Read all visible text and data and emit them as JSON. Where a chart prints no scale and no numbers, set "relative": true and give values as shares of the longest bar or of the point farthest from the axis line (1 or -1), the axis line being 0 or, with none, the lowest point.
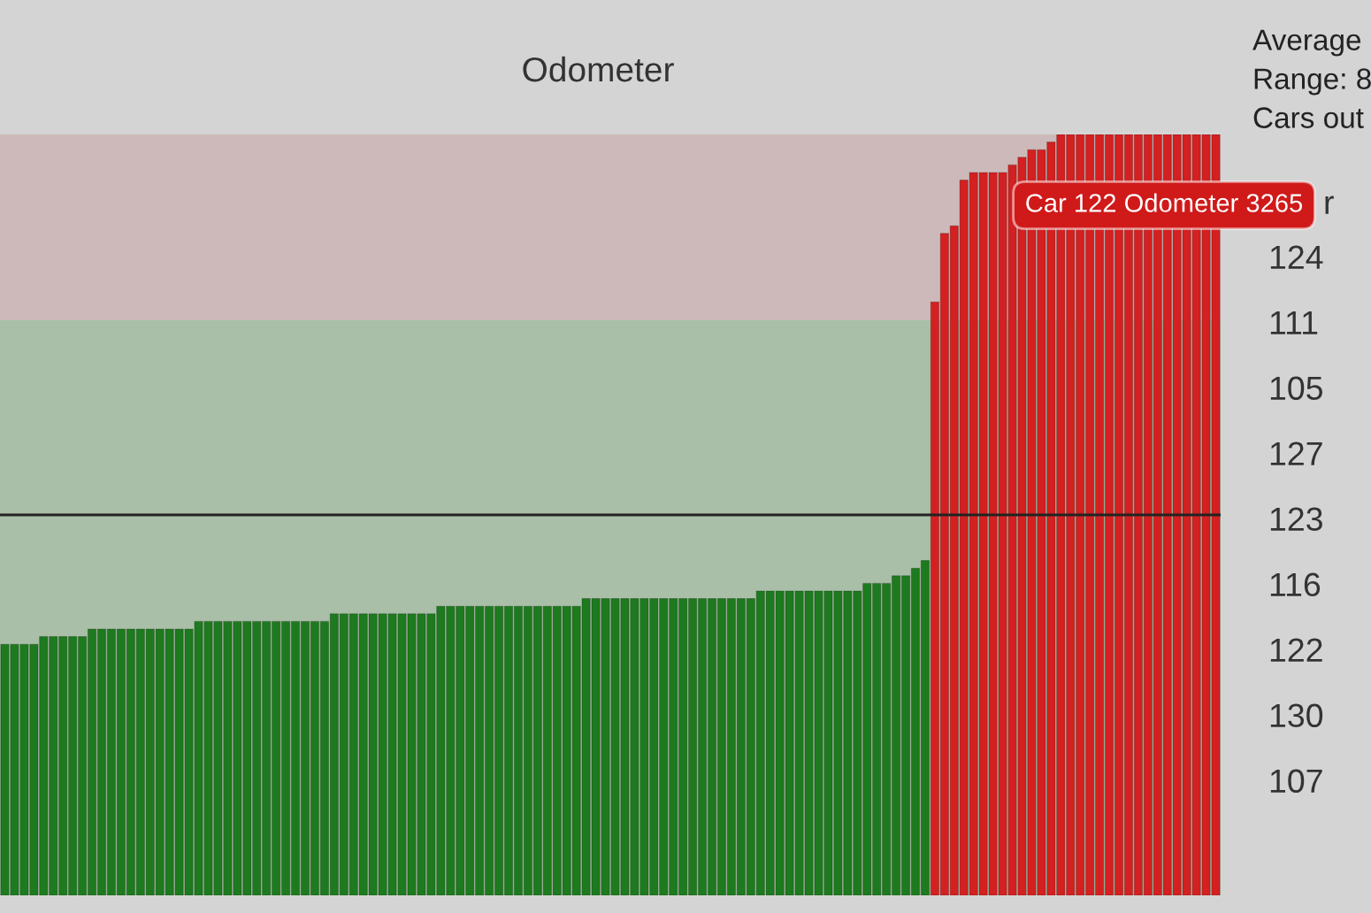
{
  "chart_data": [
    {
      "type": "bar",
      "title": "Odometer",
      "relative": true,
      "categories": [
        null,
        null,
        null,
        null,
        null,
        null,
        null,
        null,
        null,
        null,
        null,
        null,
        null,
        null,
        null,
        null,
        null,
        null,
        null,
        null,
        null,
        null,
        null,
        null,
        null,
        null,
        null,
        null,
        null,
        null,
        null,
        null,
        null,
        null,
        null,
        null,
        null,
        null,
        null,
        null,
        null,
        null,
        null,
        null,
        null,
        null,
        null,
        null,
        null,
        null,
        null,
        null,
        null,
        null,
        null,
        null,
        null,
        null,
        null,
        null,
        null,
        null,
        null,
        null,
        null,
        null,
        null,
        null,
        null,
        null,
        null,
        null,
        null,
        null,
        null,
        null,
        null,
        null,
        null,
        null,
        null,
        null,
        null,
        null,
        null,
        null,
        null,
        null,
        null,
        null,
        null,
        null,
        null,
        null,
        null,
        null,
        null,
        null,
        null,
        null,
        null,
        null,
        null,
        null,
        null,
        null,
        null,
        null,
        null,
        null,
        null,
        null,
        null,
        null,
        null,
        null,
        null,
        null,
        null,
        null,
        null,
        null,
        null,
        null,
        null,
        null
      ],
      "values": [
        0.33,
        0.33,
        0.33,
        0.33,
        0.34,
        0.34,
        0.34,
        0.34,
        0.34,
        0.35,
        0.35,
        0.35,
        0.35,
        0.35,
        0.35,
        0.35,
        0.35,
        0.35,
        0.35,
        0.35,
        0.36,
        0.36,
        0.36,
        0.36,
        0.36,
        0.36,
        0.36,
        0.36,
        0.36,
        0.36,
        0.36,
        0.36,
        0.36,
        0.36,
        0.37,
        0.37,
        0.37,
        0.37,
        0.37,
        0.37,
        0.37,
        0.37,
        0.37,
        0.37,
        0.37,
        0.38,
        0.38,
        0.38,
        0.38,
        0.38,
        0.38,
        0.38,
        0.38,
        0.38,
        0.38,
        0.38,
        0.38,
        0.38,
        0.38,
        0.38,
        0.39,
        0.39,
        0.39,
        0.39,
        0.39,
        0.39,
        0.39,
        0.39,
        0.39,
        0.39,
        0.39,
        0.39,
        0.39,
        0.39,
        0.39,
        0.39,
        0.39,
        0.39,
        0.4,
        0.4,
        0.4,
        0.4,
        0.4,
        0.4,
        0.4,
        0.4,
        0.4,
        0.4,
        0.4,
        0.41,
        0.41,
        0.41,
        0.42,
        0.42,
        0.43,
        0.44,
        0.78,
        0.87,
        0.88,
        0.94,
        0.95,
        0.95,
        0.95,
        0.95,
        0.96,
        0.97,
        0.98,
        0.98,
        0.99,
        1.0,
        1.0,
        1.0,
        1.0,
        1.0,
        1.0,
        1.0,
        1.0,
        1.0,
        1.0,
        1.0,
        1.0,
        1.0,
        1.0,
        1.0,
        1.0,
        1.0
      ],
      "colors": [
        "#1e7a1e",
        "#1e7a1e",
        "#1e7a1e",
        "#1e7a1e",
        "#1e7a1e",
        "#1e7a1e",
        "#1e7a1e",
        "#1e7a1e",
        "#1e7a1e",
        "#1e7a1e",
        "#1e7a1e",
        "#1e7a1e",
        "#1e7a1e",
        "#1e7a1e",
        "#1e7a1e",
        "#1e7a1e",
        "#1e7a1e",
        "#1e7a1e",
        "#1e7a1e",
        "#1e7a1e",
        "#1e7a1e",
        "#1e7a1e",
        "#1e7a1e",
        "#1e7a1e",
        "#1e7a1e",
        "#1e7a1e",
        "#1e7a1e",
        "#1e7a1e",
        "#1e7a1e",
        "#1e7a1e",
        "#1e7a1e",
        "#1e7a1e",
        "#1e7a1e",
        "#1e7a1e",
        "#1e7a1e",
        "#1e7a1e",
        "#1e7a1e",
        "#1e7a1e",
        "#1e7a1e",
        "#1e7a1e",
        "#1e7a1e",
        "#1e7a1e",
        "#1e7a1e",
        "#1e7a1e",
        "#1e7a1e",
        "#1e7a1e",
        "#1e7a1e",
        "#1e7a1e",
        "#1e7a1e",
        "#1e7a1e",
        "#1e7a1e",
        "#1e7a1e",
        "#1e7a1e",
        "#1e7a1e",
        "#1e7a1e",
        "#1e7a1e",
        "#1e7a1e",
        "#1e7a1e",
        "#1e7a1e",
        "#1e7a1e",
        "#1e7a1e",
        "#1e7a1e",
        "#1e7a1e",
        "#1e7a1e",
        "#1e7a1e",
        "#1e7a1e",
        "#1e7a1e",
        "#1e7a1e",
        "#1e7a1e",
        "#1e7a1e",
        "#1e7a1e",
        "#1e7a1e",
        "#1e7a1e",
        "#1e7a1e",
        "#1e7a1e",
        "#1e7a1e",
        "#1e7a1e",
        "#1e7a1e",
        "#1e7a1e",
        "#1e7a1e",
        "#1e7a1e",
        "#1e7a1e",
        "#1e7a1e",
        "#1e7a1e",
        "#1e7a1e",
        "#1e7a1e",
        "#1e7a1e",
        "#1e7a1e",
        "#1e7a1e",
        "#1e7a1e",
        "#1e7a1e",
        "#1e7a1e",
        "#1e7a1e",
        "#1e7a1e",
        "#1e7a1e",
        "#1e7a1e",
        "#d42020",
        "#d42020",
        "#d42020",
        "#d42020",
        "#d42020",
        "#d42020",
        "#d42020",
        "#d42020",
        "#d42020",
        "#d42020",
        "#d42020",
        "#d42020",
        "#d42020",
        "#d42020",
        "#d42020",
        "#d42020",
        "#d42020",
        "#d42020",
        "#d42020",
        "#d42020",
        "#d42020",
        "#d42020",
        "#d42020",
        "#d42020",
        "#d42020",
        "#d42020",
        "#d42020",
        "#d42020",
        "#d42020",
        "#d42020"
      ],
      "bands": [
        {
          "axis": "y",
          "from": 0,
          "to": 0.756,
          "color": "#a9bfa8"
        },
        {
          "axis": "y",
          "from": 0.756,
          "to": 1.0,
          "color": "#cdb9b9"
        }
      ],
      "ref_lines": [
        {
          "axis": "y",
          "value": 0.5,
          "color": "#222222",
          "line_style": "solid"
        }
      ],
      "annotations": [
        "Car 122 Odometer 3265"
      ]
    },
    {
      "type": "other",
      "annotations": [
        "Average",
        "Range: 8",
        "Cars out",
        "r",
        "124",
        "111",
        "105",
        "127",
        "123",
        "116",
        "122",
        "130",
        "107"
      ]
    }
  ]
}
